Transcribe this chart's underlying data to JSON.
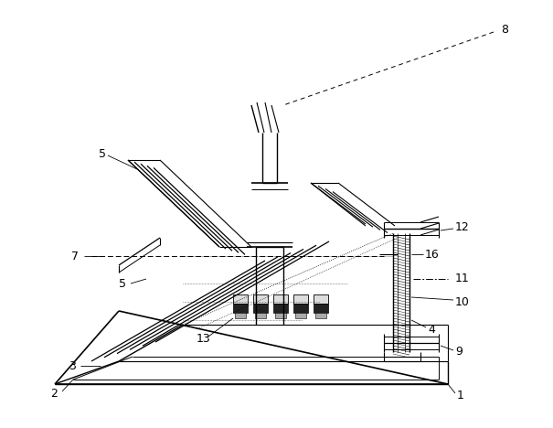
{
  "fig_width": 6.05,
  "fig_height": 4.68,
  "dpi": 100,
  "bg_color": "#ffffff",
  "line_color": "#000000",
  "label_fontsize": 9
}
